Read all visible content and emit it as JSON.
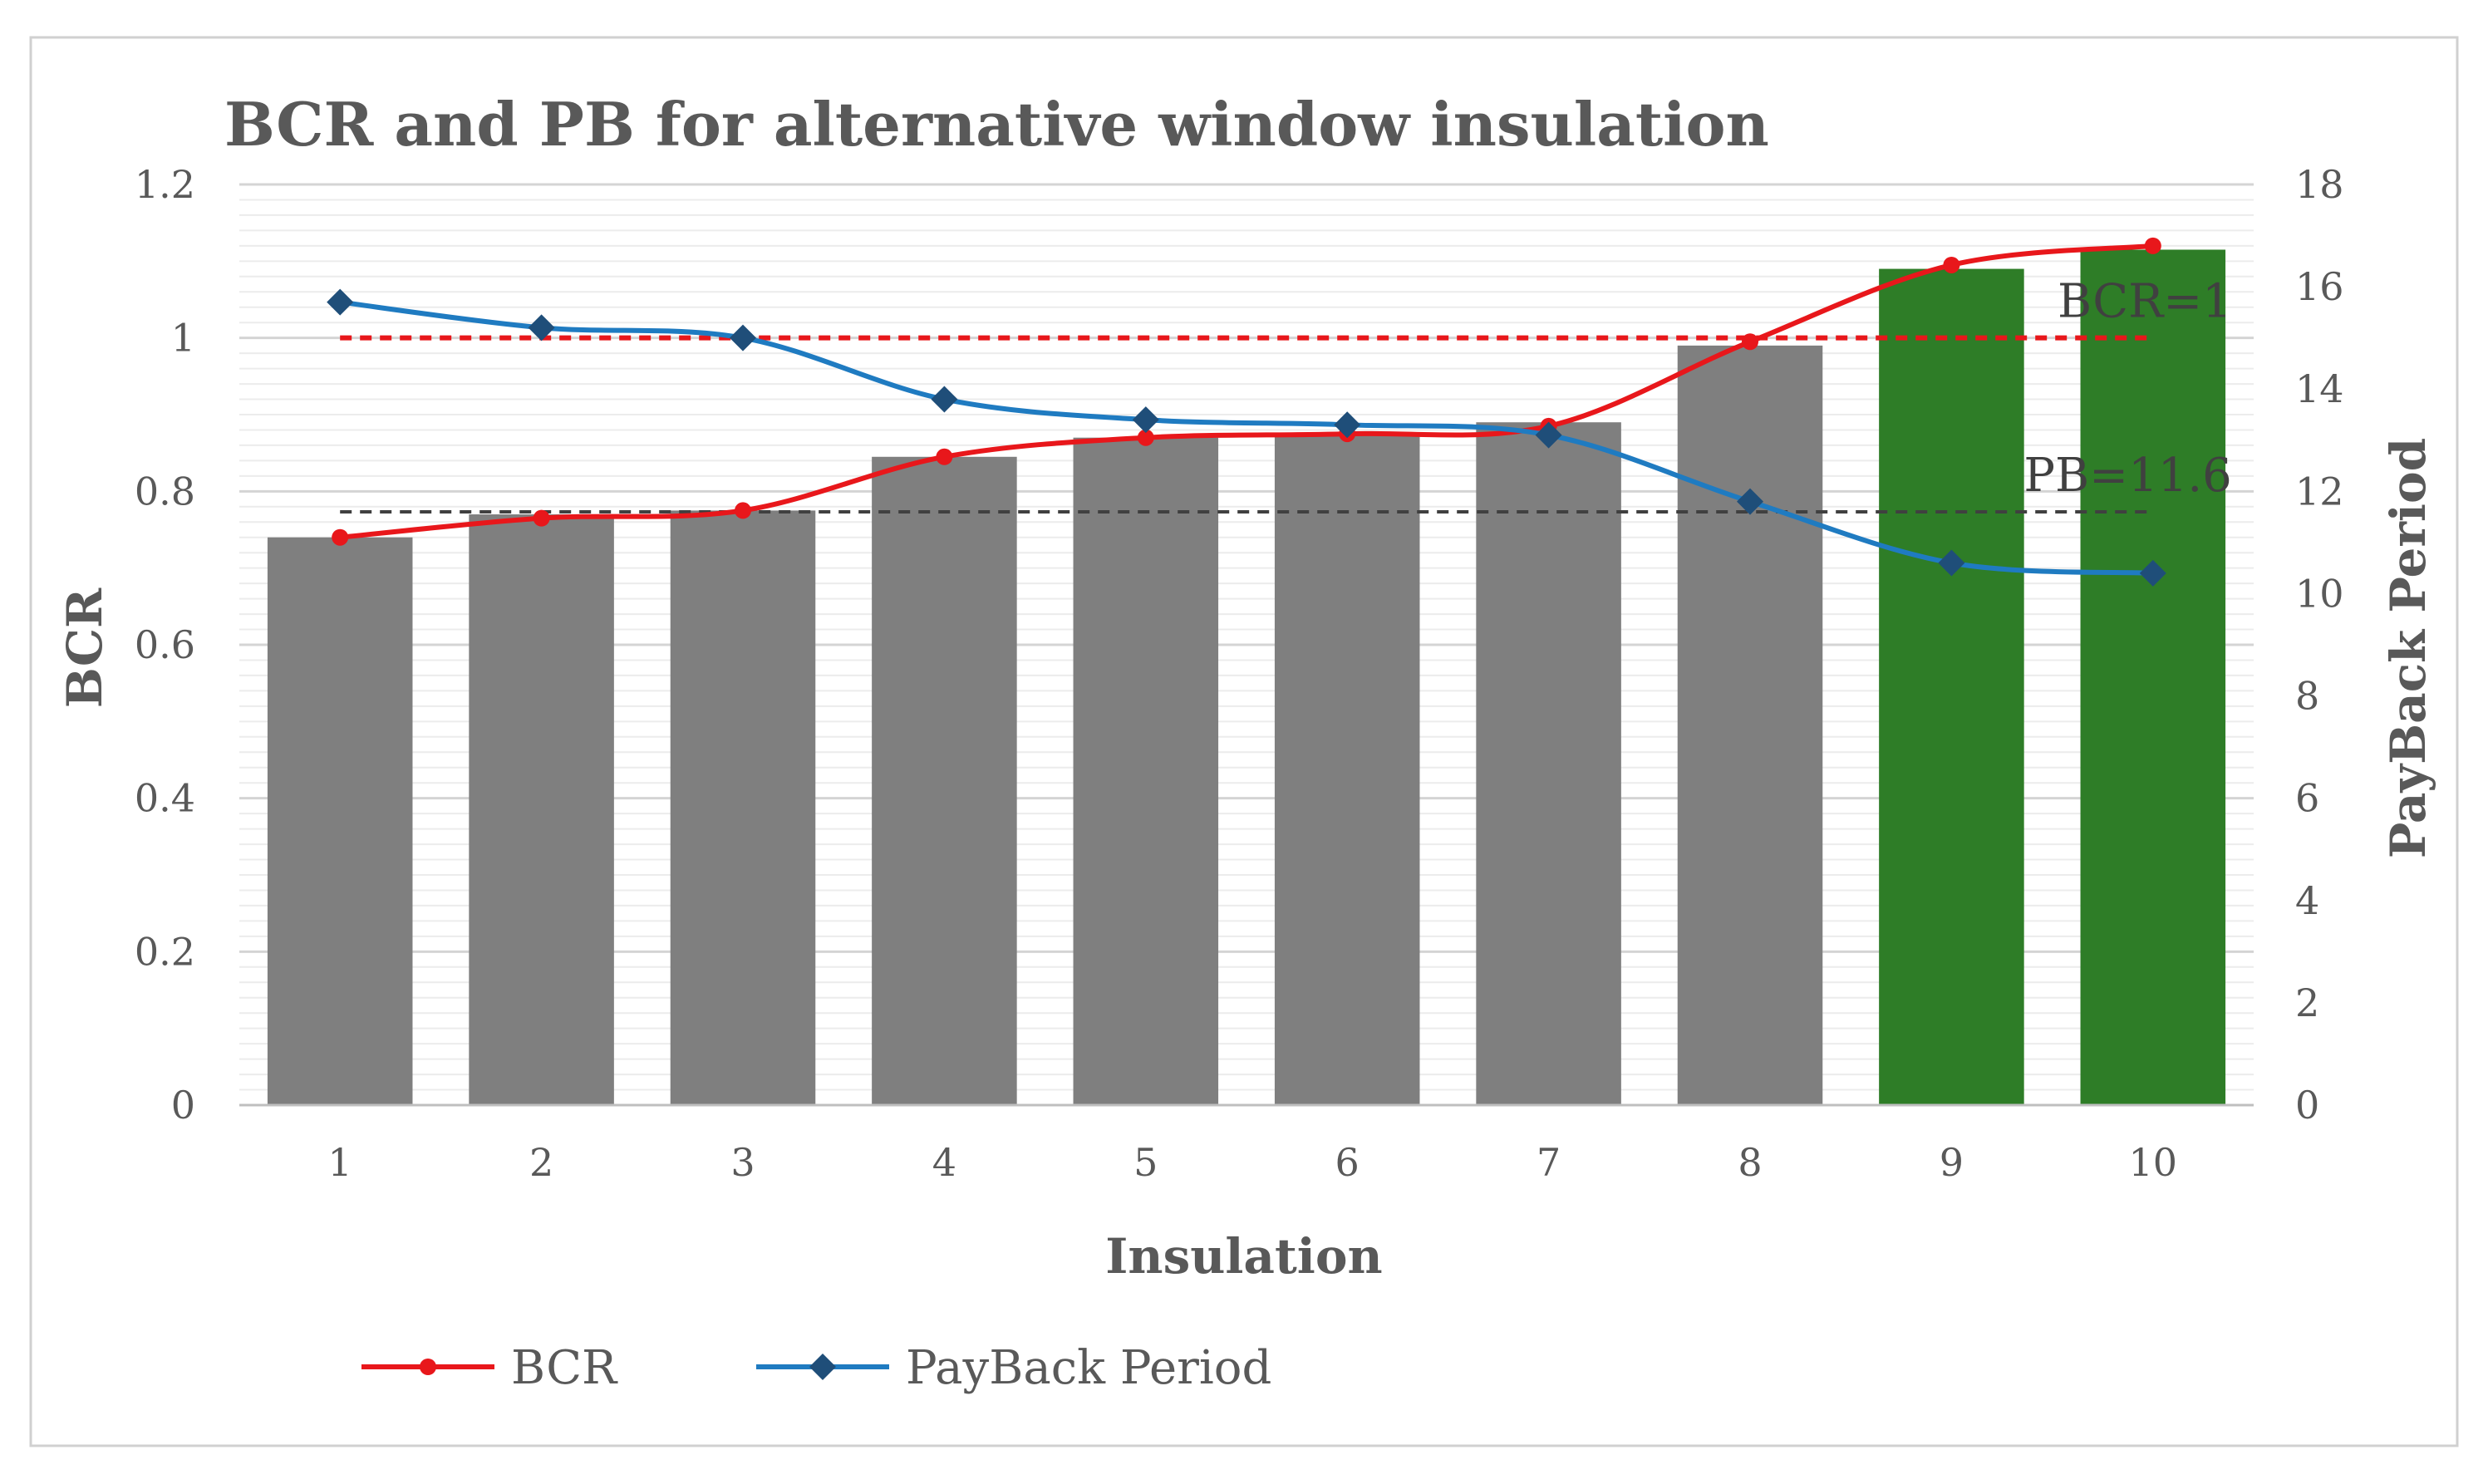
{
  "chart_data": {
    "type": "bar+line",
    "title": "BCR and PB for alternative window insulation",
    "xlabel": "Insulation",
    "ylabel_left": "BCR",
    "ylabel_right": "PayBack Period",
    "categories": [
      "1",
      "2",
      "3",
      "4",
      "5",
      "6",
      "7",
      "8",
      "9",
      "10"
    ],
    "y_left": {
      "min": 0,
      "max": 1.2,
      "ticks": [
        "0",
        "0.2",
        "0.4",
        "0.6",
        "0.8",
        "1",
        "1.2"
      ]
    },
    "y_right": {
      "min": 0,
      "max": 18,
      "ticks": [
        "0",
        "2",
        "4",
        "6",
        "8",
        "10",
        "12",
        "14",
        "16",
        "18"
      ]
    },
    "bars": {
      "values": [
        0.74,
        0.77,
        0.775,
        0.845,
        0.87,
        0.875,
        0.89,
        0.99,
        1.09,
        1.115
      ],
      "colors": [
        "#7f7f7f",
        "#7f7f7f",
        "#7f7f7f",
        "#7f7f7f",
        "#7f7f7f",
        "#7f7f7f",
        "#7f7f7f",
        "#7f7f7f",
        "#2e7d27",
        "#2e7d27"
      ]
    },
    "series": [
      {
        "name": "BCR",
        "axis": "left",
        "color": "#e8171b",
        "marker": "circle",
        "values": [
          0.74,
          0.765,
          0.775,
          0.845,
          0.87,
          0.875,
          0.885,
          0.995,
          1.095,
          1.12
        ]
      },
      {
        "name": "PayBack Period",
        "axis": "right",
        "color": "#1f7bc1",
        "marker_color": "#1f4e79",
        "marker": "diamond",
        "values": [
          15.7,
          15.2,
          15.0,
          13.8,
          13.4,
          13.3,
          13.1,
          11.8,
          10.6,
          10.4
        ]
      }
    ],
    "reference_lines": [
      {
        "label": "BCR=1",
        "axis": "left",
        "value": 1,
        "color": "#e8171b"
      },
      {
        "label": "PB=11.6",
        "axis": "right",
        "value": 11.6,
        "color": "#404040"
      }
    ],
    "legend_position": "bottom",
    "grid": true
  }
}
